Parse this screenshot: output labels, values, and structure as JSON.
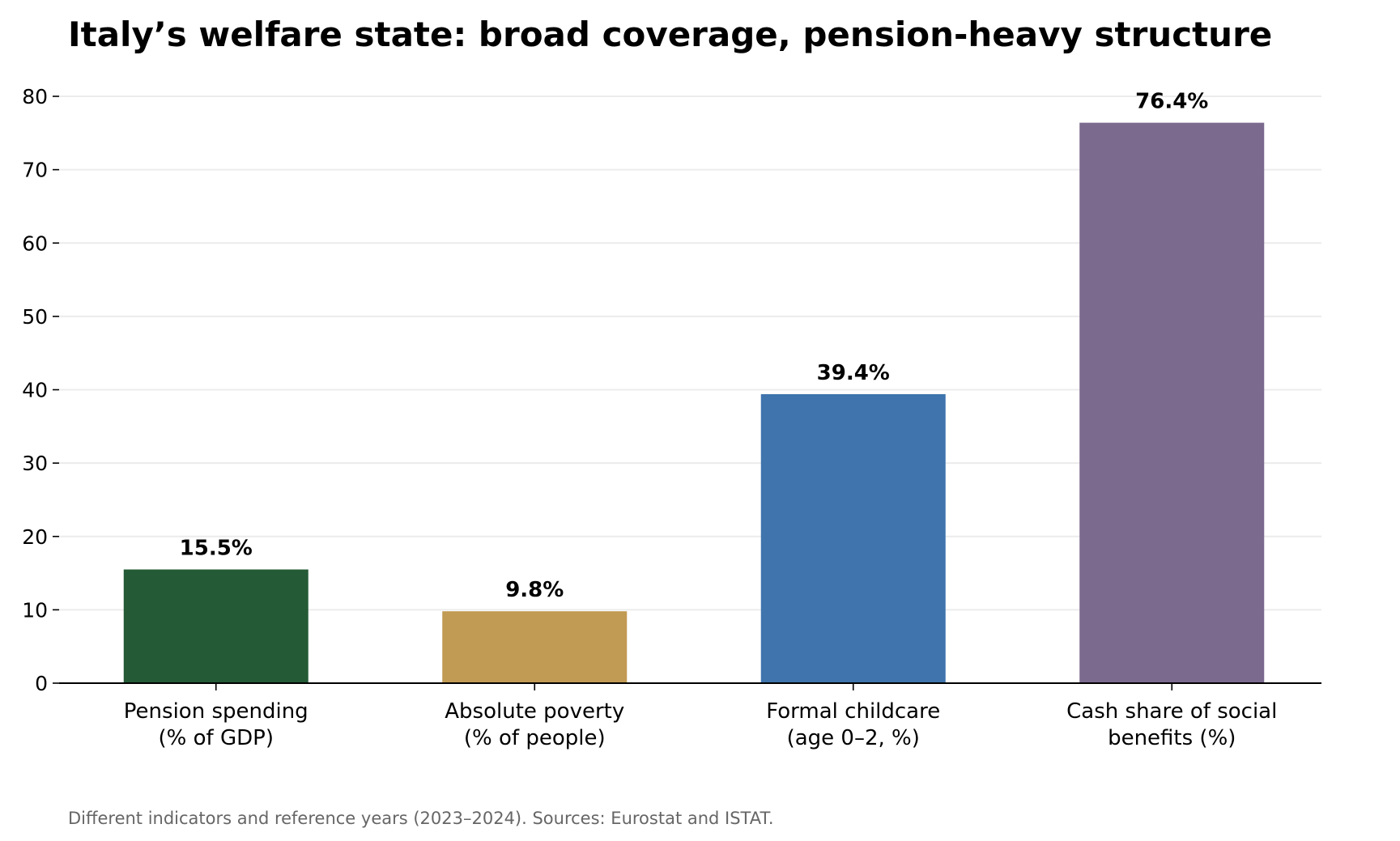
{
  "chart_data": {
    "type": "bar",
    "title": "Italy’s welfare state: broad coverage, pension-heavy structure",
    "categories": [
      [
        "Pension spending",
        "(% of GDP)"
      ],
      [
        "Absolute poverty",
        "(% of people)"
      ],
      [
        "Formal childcare",
        "(age 0–2, %)"
      ],
      [
        "Cash share of social",
        "benefits (%)"
      ]
    ],
    "values": [
      15.5,
      9.8,
      39.4,
      76.4
    ],
    "value_labels": [
      "15.5%",
      "9.8%",
      "39.4%",
      "76.4%"
    ],
    "colors": [
      "#245b36",
      "#c19a53",
      "#3f74ad",
      "#7b6a8e"
    ],
    "ylim": [
      0,
      80
    ],
    "yticks": [
      0,
      10,
      20,
      30,
      40,
      50,
      60,
      70,
      80
    ],
    "grid": true,
    "footnote": "Different indicators and reference years (2023–2024). Sources: Eurostat and ISTAT."
  }
}
